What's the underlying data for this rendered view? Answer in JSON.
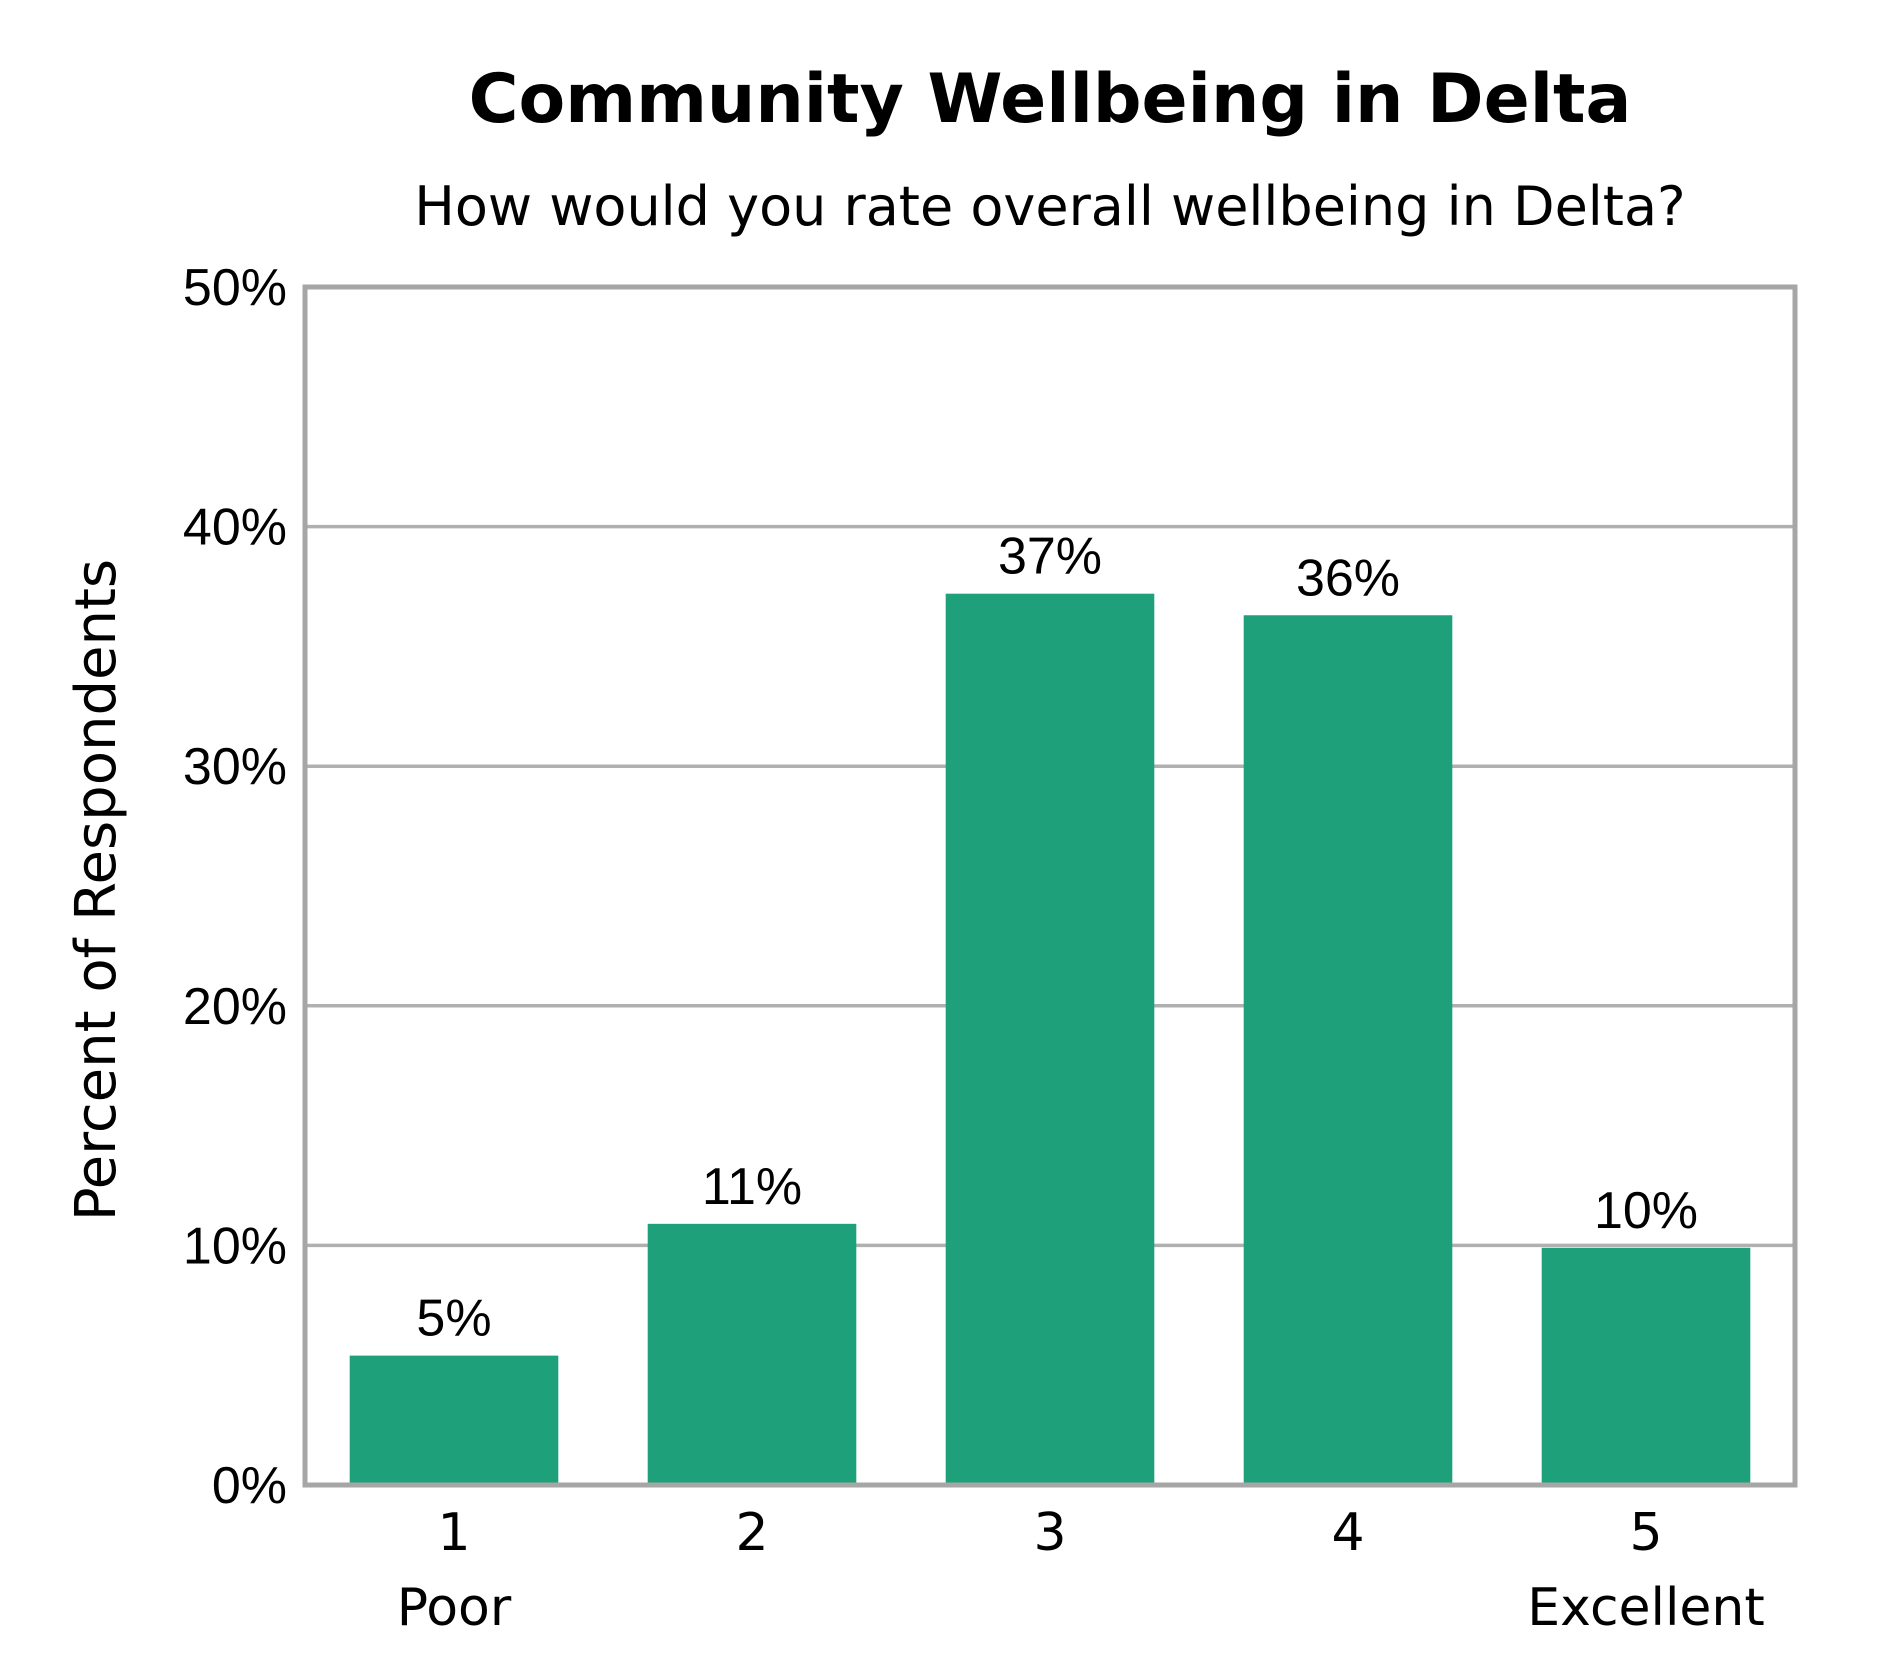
{
  "chart_data": {
    "type": "bar",
    "title": "Community Wellbeing in Delta",
    "subtitle": "How would you rate overall wellbeing in Delta?",
    "ylabel": "Percent of Respondents",
    "xlabel": "",
    "categories": [
      "1",
      "2",
      "3",
      "4",
      "5"
    ],
    "category_sublabels": [
      "Poor",
      "",
      "",
      "",
      "Excellent"
    ],
    "values": [
      5.4,
      10.9,
      37.2,
      36.3,
      9.9
    ],
    "data_labels": [
      "5%",
      "11%",
      "37%",
      "36%",
      "10%"
    ],
    "ylim": [
      0,
      50
    ],
    "yticks": [
      0,
      10,
      20,
      30,
      40,
      50
    ],
    "ytick_labels": [
      "0%",
      "10%",
      "20%",
      "30%",
      "40%",
      "50%"
    ],
    "grid": true,
    "legend": "none",
    "colors": {
      "bar": "#1ea07a",
      "grid": "#b0b0b0",
      "axis": "#a6a6a6"
    }
  }
}
